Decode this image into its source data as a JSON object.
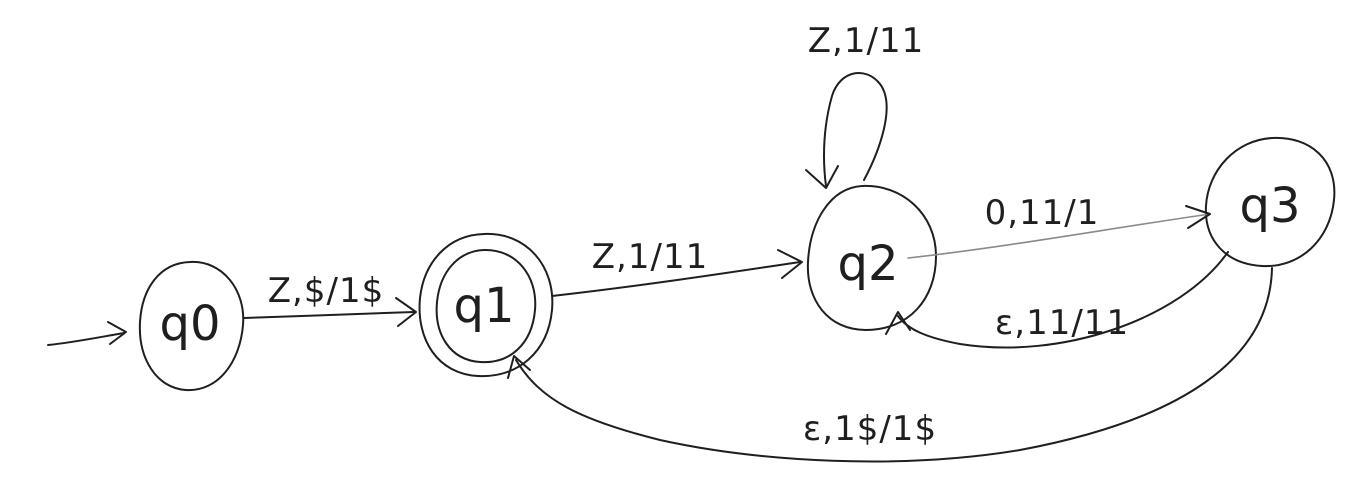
{
  "states": [
    {
      "id": "q0",
      "label": "q0",
      "accepting": false,
      "initial": true
    },
    {
      "id": "q1",
      "label": "q1",
      "accepting": true,
      "initial": false
    },
    {
      "id": "q2",
      "label": "q2",
      "accepting": false,
      "initial": false
    },
    {
      "id": "q3",
      "label": "q3",
      "accepting": false,
      "initial": false
    }
  ],
  "transitions": [
    {
      "id": "q0-q1",
      "from": "q0",
      "to": "q1",
      "label": "Z,$/1$"
    },
    {
      "id": "q1-q2",
      "from": "q1",
      "to": "q2",
      "label": "Z,1/11"
    },
    {
      "id": "q2-q2",
      "from": "q2",
      "to": "q2",
      "label": "Z,1/11"
    },
    {
      "id": "q2-q3",
      "from": "q2",
      "to": "q3",
      "label": "0,11/1"
    },
    {
      "id": "q3-q2",
      "from": "q3",
      "to": "q2",
      "label": "ε,11/11"
    },
    {
      "id": "q3-q1",
      "from": "q3",
      "to": "q1",
      "label": "ε,1$/1$"
    }
  ]
}
